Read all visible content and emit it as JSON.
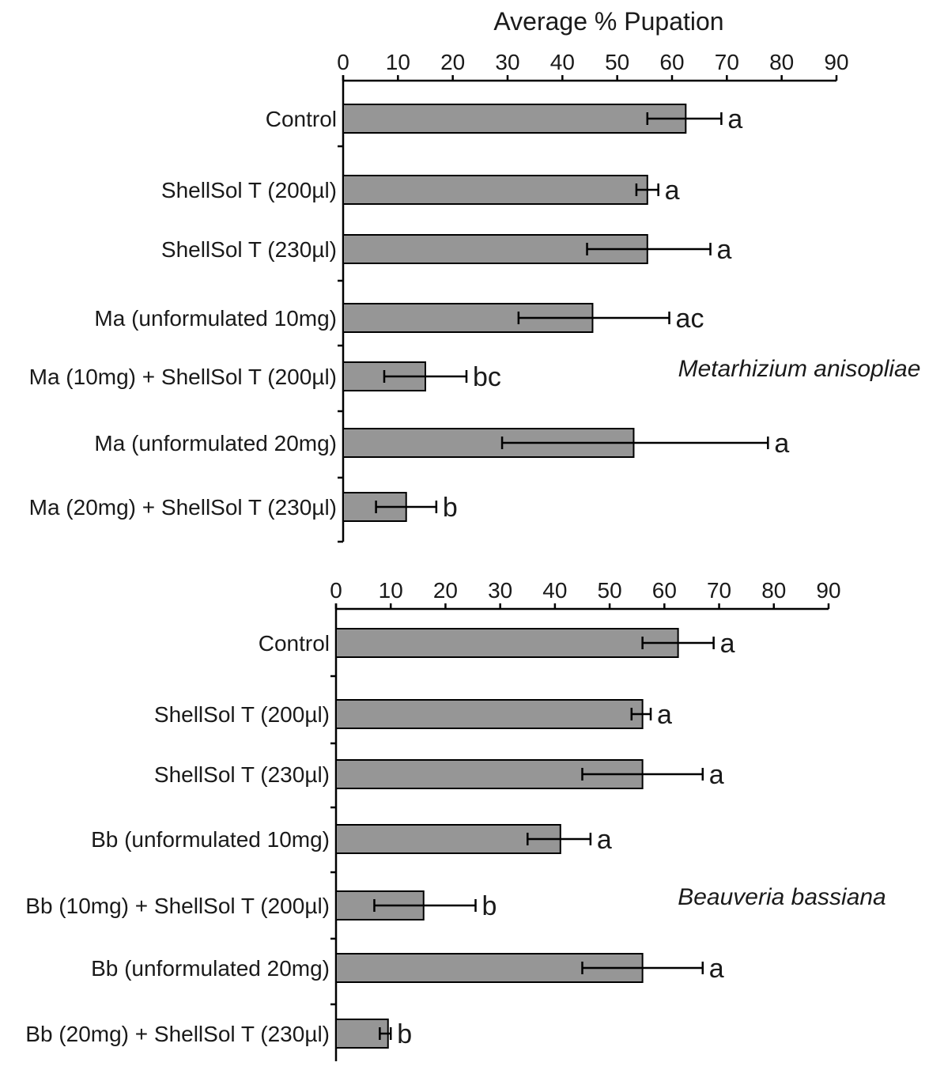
{
  "chart_data": [
    {
      "type": "bar",
      "orientation": "horizontal",
      "title": "Average % Pupation",
      "species": "Metarhizium anisopliae",
      "xlim": [
        0,
        90
      ],
      "ticks": [
        "0",
        "10",
        "20",
        "30",
        "40",
        "50",
        "60",
        "70",
        "80",
        "90"
      ],
      "categories": [
        "Control",
        "ShellSol T (200µl)",
        "ShellSol T (230µl)",
        "Ma (unformulated 10mg)",
        "Ma (10mg) + ShellSol T (200µl)",
        "Ma (unformulated 20mg)",
        "Ma (20mg) + ShellSol T (230µl)"
      ],
      "values": [
        62.5,
        55.5,
        55.5,
        45.5,
        15,
        53,
        11.5
      ],
      "error_low": [
        55.5,
        53.5,
        44.5,
        32,
        7.5,
        29,
        6
      ],
      "error_high": [
        69,
        57.5,
        67,
        59.5,
        22.5,
        77.5,
        17
      ],
      "letters": [
        "a",
        "a",
        "a",
        "ac",
        "bc",
        "a",
        "b"
      ],
      "grid": false
    },
    {
      "type": "bar",
      "orientation": "horizontal",
      "title": "",
      "species": "Beauveria bassiana",
      "xlim": [
        0,
        90
      ],
      "ticks": [
        "0",
        "10",
        "20",
        "30",
        "40",
        "50",
        "60",
        "70",
        "80",
        "90"
      ],
      "categories": [
        "Control",
        "ShellSol T (200µl)",
        "ShellSol T (230µl)",
        "Bb (unformulated 10mg)",
        "Bb (10mg) + ShellSol T (200µl)",
        "Bb (unformulated 20mg)",
        "Bb (20mg) + ShellSol T (230µl)"
      ],
      "values": [
        62.5,
        56,
        56,
        41,
        16,
        56,
        9.5
      ],
      "error_low": [
        56,
        54,
        45,
        35,
        7,
        45,
        8
      ],
      "error_high": [
        69,
        57.5,
        67,
        46.5,
        25.5,
        67,
        10
      ],
      "letters": [
        "a",
        "a",
        "a",
        "a",
        "b",
        "a",
        "b"
      ],
      "grid": false
    }
  ]
}
